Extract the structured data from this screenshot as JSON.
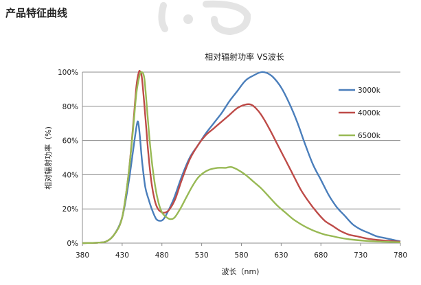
{
  "page": {
    "section_title": "产品特征曲线"
  },
  "chart_data": {
    "type": "line",
    "title": "相对辐射功率 VS波长",
    "xlabel": "波长（nm)",
    "ylabel": "相对辐射功率（%)",
    "xlim": [
      380,
      780
    ],
    "ylim": [
      0,
      100
    ],
    "x_ticks": [
      "380",
      "430",
      "480",
      "530",
      "580",
      "630",
      "680",
      "730",
      "780"
    ],
    "y_ticks": [
      "0%",
      "20%",
      "40%",
      "60%",
      "80%",
      "100%"
    ],
    "grid": "horizontal",
    "legend_position": "right",
    "series": [
      {
        "name": "3000k",
        "color": "#4a7ebb",
        "points": [
          [
            380,
            0
          ],
          [
            400,
            0.3
          ],
          [
            410,
            1
          ],
          [
            420,
            5
          ],
          [
            430,
            15
          ],
          [
            438,
            35
          ],
          [
            444,
            55
          ],
          [
            448,
            68
          ],
          [
            450,
            71
          ],
          [
            452,
            64
          ],
          [
            455,
            48
          ],
          [
            459,
            33
          ],
          [
            463,
            26
          ],
          [
            468,
            19
          ],
          [
            473,
            14
          ],
          [
            478,
            13
          ],
          [
            482,
            14
          ],
          [
            487,
            18
          ],
          [
            495,
            26
          ],
          [
            505,
            39
          ],
          [
            515,
            50
          ],
          [
            525,
            57
          ],
          [
            535,
            64
          ],
          [
            545,
            70
          ],
          [
            555,
            76
          ],
          [
            565,
            83
          ],
          [
            575,
            89
          ],
          [
            585,
            95
          ],
          [
            595,
            98
          ],
          [
            605,
            100
          ],
          [
            612,
            99.5
          ],
          [
            620,
            97
          ],
          [
            630,
            91
          ],
          [
            640,
            82
          ],
          [
            650,
            71
          ],
          [
            660,
            58
          ],
          [
            670,
            46
          ],
          [
            680,
            37
          ],
          [
            690,
            28
          ],
          [
            700,
            21
          ],
          [
            710,
            16
          ],
          [
            720,
            11
          ],
          [
            730,
            8
          ],
          [
            740,
            6
          ],
          [
            750,
            4
          ],
          [
            760,
            3
          ],
          [
            770,
            2
          ],
          [
            780,
            1
          ]
        ]
      },
      {
        "name": "4000k",
        "color": "#be4b48",
        "points": [
          [
            380,
            0
          ],
          [
            400,
            0.3
          ],
          [
            410,
            1
          ],
          [
            420,
            5
          ],
          [
            430,
            15
          ],
          [
            438,
            40
          ],
          [
            444,
            70
          ],
          [
            448,
            92
          ],
          [
            451,
            100
          ],
          [
            453,
            100
          ],
          [
            455,
            96
          ],
          [
            459,
            75
          ],
          [
            463,
            52
          ],
          [
            467,
            35
          ],
          [
            471,
            25
          ],
          [
            475,
            20
          ],
          [
            480,
            18
          ],
          [
            485,
            18
          ],
          [
            490,
            20
          ],
          [
            497,
            26
          ],
          [
            505,
            37
          ],
          [
            515,
            49
          ],
          [
            525,
            57
          ],
          [
            535,
            63
          ],
          [
            545,
            67
          ],
          [
            555,
            71
          ],
          [
            565,
            75
          ],
          [
            575,
            79
          ],
          [
            585,
            81
          ],
          [
            592,
            81
          ],
          [
            598,
            79
          ],
          [
            605,
            75
          ],
          [
            615,
            67
          ],
          [
            625,
            58
          ],
          [
            635,
            49
          ],
          [
            645,
            40
          ],
          [
            655,
            31
          ],
          [
            665,
            24
          ],
          [
            675,
            18
          ],
          [
            685,
            13
          ],
          [
            695,
            10
          ],
          [
            705,
            7
          ],
          [
            715,
            5
          ],
          [
            725,
            4
          ],
          [
            740,
            2.5
          ],
          [
            760,
            1.5
          ],
          [
            780,
            0.8
          ]
        ]
      },
      {
        "name": "6500k",
        "color": "#98b954",
        "points": [
          [
            380,
            0
          ],
          [
            400,
            0.3
          ],
          [
            410,
            1
          ],
          [
            420,
            5
          ],
          [
            430,
            15
          ],
          [
            438,
            40
          ],
          [
            444,
            68
          ],
          [
            448,
            88
          ],
          [
            452,
            98
          ],
          [
            455,
            100
          ],
          [
            458,
            96
          ],
          [
            461,
            80
          ],
          [
            465,
            58
          ],
          [
            470,
            38
          ],
          [
            475,
            25
          ],
          [
            480,
            18
          ],
          [
            486,
            15
          ],
          [
            491,
            14
          ],
          [
            496,
            15
          ],
          [
            503,
            20
          ],
          [
            511,
            27
          ],
          [
            518,
            33
          ],
          [
            525,
            38
          ],
          [
            532,
            41
          ],
          [
            540,
            43
          ],
          [
            550,
            44
          ],
          [
            560,
            44
          ],
          [
            567,
            44.5
          ],
          [
            575,
            43
          ],
          [
            585,
            40
          ],
          [
            595,
            36
          ],
          [
            605,
            32
          ],
          [
            615,
            27
          ],
          [
            625,
            22
          ],
          [
            635,
            18
          ],
          [
            645,
            14
          ],
          [
            655,
            11
          ],
          [
            665,
            8.5
          ],
          [
            675,
            6.5
          ],
          [
            685,
            5
          ],
          [
            695,
            4
          ],
          [
            705,
            3
          ],
          [
            720,
            2
          ],
          [
            740,
            1.2
          ],
          [
            760,
            0.8
          ],
          [
            780,
            0.5
          ]
        ]
      }
    ]
  }
}
